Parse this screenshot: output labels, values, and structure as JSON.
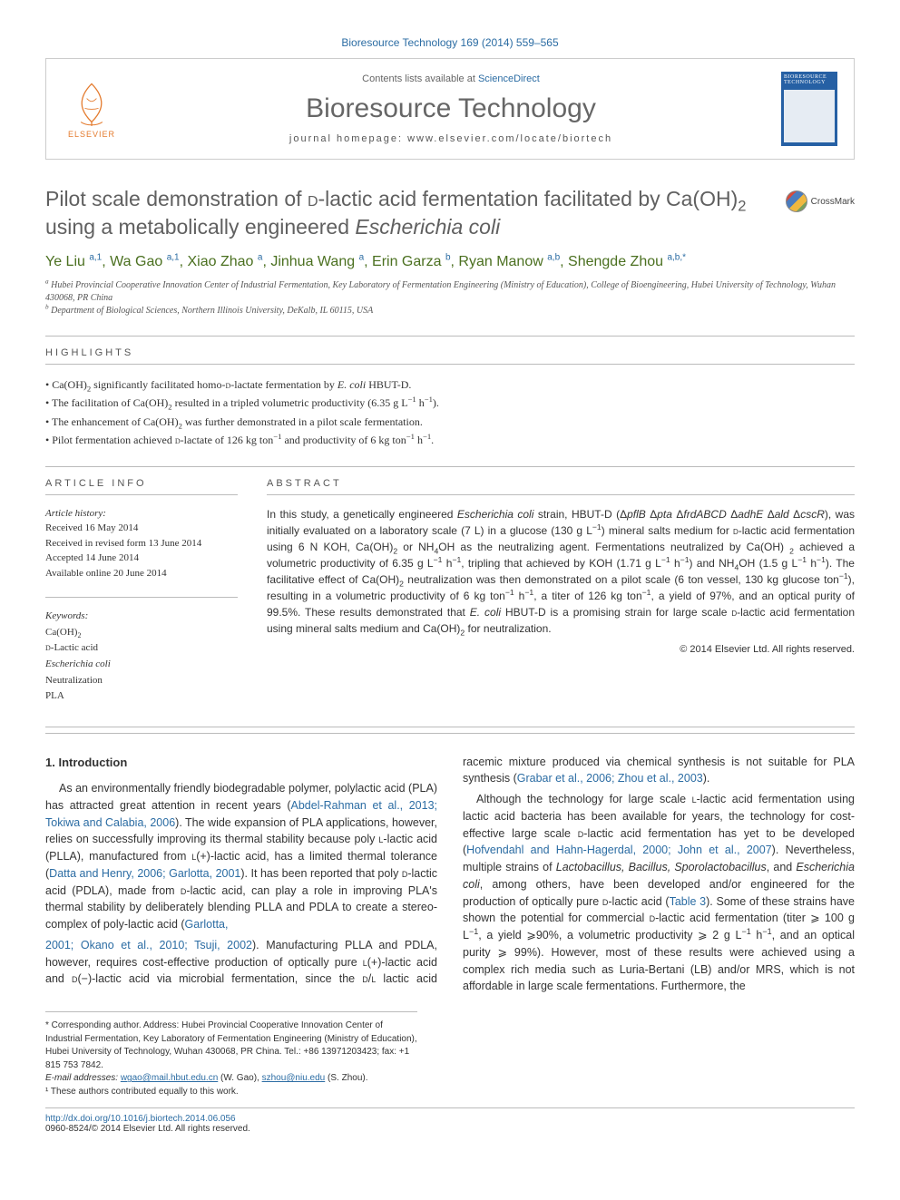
{
  "citation": "Bioresource Technology 169 (2014) 559–565",
  "header": {
    "contents_prefix": "Contents lists available at ",
    "contents_link": "ScienceDirect",
    "journal_name": "Bioresource Technology",
    "homepage_label": "journal homepage: ",
    "homepage_url": "www.elsevier.com/locate/biortech",
    "elsevier": "ELSEVIER",
    "cover_title": "BIORESOURCE TECHNOLOGY"
  },
  "crossmark": "CrossMark",
  "title_html": "Pilot scale demonstration of <span style='font-variant:small-caps'>d</span>-lactic acid fermentation facilitated by Ca(OH)<sub>2</sub> using a metabolically engineered <i>Escherichia coli</i>",
  "authors_html": "Ye Liu <sup>a,1</sup>, Wa Gao <sup>a,1</sup>, Xiao Zhao <sup>a</sup>, Jinhua Wang <sup>a</sup>, Erin Garza <sup>b</sup>, Ryan Manow <sup>a,b</sup>, Shengde Zhou <sup>a,b,*</sup>",
  "affiliations": {
    "a": "Hubei Provincial Cooperative Innovation Center of Industrial Fermentation, Key Laboratory of Fermentation Engineering (Ministry of Education), College of Bioengineering, Hubei University of Technology, Wuhan 430068, PR China",
    "b": "Department of Biological Sciences, Northern Illinois University, DeKalb, IL 60115, USA"
  },
  "highlights": {
    "heading": "highlights",
    "items_html": [
      "Ca(OH)<sub>2</sub> significantly facilitated homo-<span style='font-variant:small-caps'>d</span>-lactate fermentation by <i>E. coli</i> HBUT-D.",
      "The facilitation of Ca(OH)<sub>2</sub> resulted in a tripled volumetric productivity (6.35 g L<sup>−1</sup> h<sup>−1</sup>).",
      "The enhancement of Ca(OH)<sub>2</sub> was further demonstrated in a pilot scale fermentation.",
      "Pilot fermentation achieved <span style='font-variant:small-caps'>d</span>-lactate of 126 kg ton<sup>−1</sup> and productivity of 6 kg ton<sup>−1</sup> h<sup>−1</sup>."
    ]
  },
  "article_info": {
    "heading": "article info",
    "history_label": "Article history:",
    "history": [
      "Received 16 May 2014",
      "Received in revised form 13 June 2014",
      "Accepted 14 June 2014",
      "Available online 20 June 2014"
    ],
    "keywords_label": "Keywords:",
    "keywords_html": [
      "Ca(OH)<sub>2</sub>",
      "<span style='font-variant:small-caps'>d</span>-Lactic acid",
      "<i>Escherichia coli</i>",
      "Neutralization",
      "PLA"
    ]
  },
  "abstract": {
    "heading": "abstract",
    "text_html": "In this study, a genetically engineered <i>Escherichia coli</i> strain, HBUT-D (Δ<i>pflB</i> Δ<i>pta</i> Δ<i>frdABCD</i> Δ<i>adhE</i> Δ<i>ald</i> Δ<i>cscR</i>), was initially evaluated on a laboratory scale (7 L) in a glucose (130 g L<sup>−1</sup>) mineral salts medium for <span style='font-variant:small-caps'>d</span>-lactic acid fermentation using 6 N KOH, Ca(OH)<sub>2</sub> or NH<sub>4</sub>OH as the neutralizing agent. Fermentations neutralized by Ca(OH) <sub>2</sub> achieved a volumetric productivity of 6.35 g L<sup>−1</sup> h<sup>−1</sup>, tripling that achieved by KOH (1.71 g L<sup>−1</sup> h<sup>−1</sup>) and NH<sub>4</sub>OH (1.5 g L<sup>−1</sup> h<sup>−1</sup>). The facilitative effect of Ca(OH)<sub>2</sub> neutralization was then demonstrated on a pilot scale (6 ton vessel, 130 kg glucose ton<sup>−1</sup>), resulting in a volumetric productivity of 6 kg ton<sup>−1</sup> h<sup>−1</sup>, a titer of 126 kg ton<sup>−1</sup>, a yield of 97%, and an optical purity of 99.5%. These results demonstrated that <i>E. coli</i> HBUT-D is a promising strain for large scale <span style='font-variant:small-caps'>d</span>-lactic acid fermentation using mineral salts medium and Ca(OH)<sub>2</sub> for neutralization.",
    "copyright": "© 2014 Elsevier Ltd. All rights reserved."
  },
  "body": {
    "intro_heading": "1. Introduction",
    "p1_html": "As an environmentally friendly biodegradable polymer, polylactic acid (PLA) has attracted great attention in recent years (<a href='#'>Abdel-Rahman et al., 2013; Tokiwa and Calabia, 2006</a>). The wide expansion of PLA applications, however, relies on successfully improving its thermal stability because poly <span style='font-variant:small-caps'>l</span>-lactic acid (PLLA), manufactured from <span style='font-variant:small-caps'>l</span>(+)-lactic acid, has a limited thermal tolerance (<a href='#'>Datta and Henry, 2006; Garlotta, 2001</a>). It has been reported that poly <span style='font-variant:small-caps'>d</span>-lactic acid (PDLA), made from <span style='font-variant:small-caps'>d</span>-lactic acid, can play a role in improving PLA's thermal stability by deliberately blending PLLA and PDLA to create a stereo-complex of poly-lactic acid (<a href='#'>Garlotta,</a>",
    "p2_html": "<a href='#'>2001; Okano et al., 2010; Tsuji, 2002</a>). Manufacturing PLLA and PDLA, however, requires cost-effective production of optically pure <span style='font-variant:small-caps'>l</span>(+)-lactic acid and <span style='font-variant:small-caps'>d</span>(−)-lactic acid via microbial fermentation, since the <span style='font-variant:small-caps'>d</span>/<span style='font-variant:small-caps'>l</span> lactic acid racemic mixture produced via chemical synthesis is not suitable for PLA synthesis (<a href='#'>Grabar et al., 2006; Zhou et al., 2003</a>).",
    "p3_html": "Although the technology for large scale <span style='font-variant:small-caps'>l</span>-lactic acid fermentation using lactic acid bacteria has been available for years, the technology for cost-effective large scale <span style='font-variant:small-caps'>d</span>-lactic acid fermentation has yet to be developed (<a href='#'>Hofvendahl and Hahn-Hagerdal, 2000; John et al., 2007</a>). Nevertheless, multiple strains of <i>Lactobacillus, Bacillus, Sporolactobacillus</i>, and <i>Escherichia coli</i>, among others, have been developed and/or engineered for the production of optically pure <span style='font-variant:small-caps'>d</span>-lactic acid (<a href='#'>Table 3</a>). Some of these strains have shown the potential for commercial <span style='font-variant:small-caps'>d</span>-lactic acid fermentation (titer ⩾ 100 g L<sup>−1</sup>, a yield ⩾90%, a volumetric productivity ⩾ 2 g L<sup>−1</sup> h<sup>−1</sup>, and an optical purity ⩾ 99%). However, most of these results were achieved using a complex rich media such as Luria-Bertani (LB) and/or MRS, which is not affordable in large scale fermentations. Furthermore, the"
  },
  "footnotes": {
    "corresponding": "* Corresponding author. Address: Hubei Provincial Cooperative Innovation Center of Industrial Fermentation, Key Laboratory of Fermentation Engineering (Ministry of Education), Hubei University of Technology, Wuhan 430068, PR China. Tel.: +86 13971203423; fax: +1 815 753 7842.",
    "email_label": "E-mail addresses: ",
    "email1": "wgao@mail.hbut.edu.cn",
    "email1_name": " (W. Gao), ",
    "email2": "szhou@niu.edu",
    "email2_name": " (S. Zhou).",
    "note1": "¹ These authors contributed equally to this work."
  },
  "bottom": {
    "doi": "http://dx.doi.org/10.1016/j.biortech.2014.06.056",
    "issn_line": "0960-8524/© 2014 Elsevier Ltd. All rights reserved."
  },
  "colors": {
    "link": "#2b6ca3",
    "author_green": "#4b7020",
    "elsevier_orange": "#e47b2e",
    "title_gray": "#606060",
    "rule": "#bbbbbb"
  }
}
